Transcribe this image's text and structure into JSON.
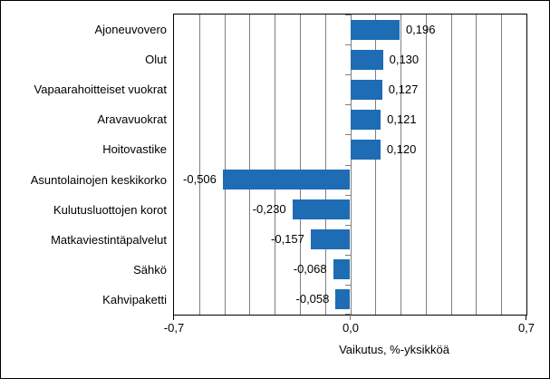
{
  "chart_data": {
    "type": "bar",
    "orientation": "horizontal",
    "xlabel": "Vaikutus, %-yksikköä",
    "categories": [
      "Ajoneuvovero",
      "Olut",
      "Vapaarahoitteiset vuokrat",
      "Aravavuokrat",
      "Hoitovastike",
      "Asuntolainojen keskikorko",
      "Kulutusluottojen korot",
      "Matkaviestintäpalvelut",
      "Sähkö",
      "Kahvipaketti"
    ],
    "values": [
      0.196,
      0.13,
      0.127,
      0.121,
      0.12,
      -0.506,
      -0.23,
      -0.157,
      -0.068,
      -0.058
    ],
    "value_labels": [
      "0,196",
      "0,130",
      "0,127",
      "0,121",
      "0,120",
      "-0,506",
      "-0,230",
      "-0,157",
      "-0,068",
      "-0,058"
    ],
    "xlim": [
      -0.7,
      0.7
    ],
    "x_ticks": [
      -0.7,
      0.0,
      0.7
    ],
    "x_tick_labels": [
      "-0,7",
      "0,0",
      "0,7"
    ],
    "gridline_step": 0.1,
    "grid": true,
    "legend": false,
    "bar_color": "#1e6cb4",
    "grid_color": "#808080",
    "axis_color": "#000000",
    "text_color": "#000000"
  }
}
